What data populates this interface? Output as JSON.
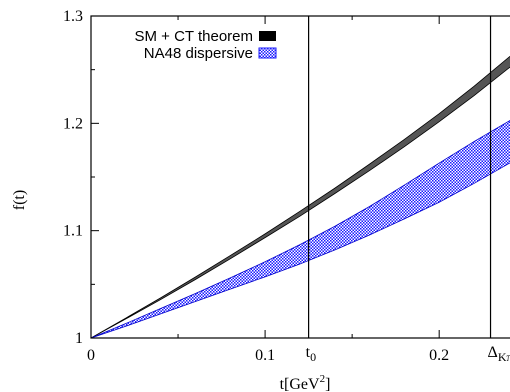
{
  "chart_data": {
    "type": "area",
    "xlabel_base": "t[GeV",
    "xlabel_sup": "2",
    "xlabel_close": "]",
    "ylabel": "f(t)",
    "xlim": [
      0,
      0.247
    ],
    "ylim": [
      1.0,
      1.3
    ],
    "x_ticks": [
      {
        "value": 0,
        "label": "0"
      },
      {
        "value": 0.1,
        "label": "0.1"
      },
      {
        "value": 0.2,
        "label": "0.2"
      }
    ],
    "y_ticks": [
      {
        "value": 1.0,
        "label": "1"
      },
      {
        "value": 1.1,
        "label": "1.1"
      },
      {
        "value": 1.2,
        "label": "1.2"
      },
      {
        "value": 1.3,
        "label": "1.3"
      }
    ],
    "vlines": [
      {
        "value": 0.125,
        "base": "t",
        "sub": "0"
      },
      {
        "value": 0.2295,
        "base": "Δ",
        "sub": "Kπ"
      }
    ],
    "legend_position": "top-left",
    "series": [
      {
        "name": "SM + CT theorem",
        "color": "#555555",
        "x": [
          0,
          0.02,
          0.04,
          0.06,
          0.08,
          0.1,
          0.12,
          0.14,
          0.16,
          0.18,
          0.2,
          0.22,
          0.24,
          0.247
        ],
        "lower": [
          1.0,
          1.0178,
          1.0358,
          1.0545,
          1.0738,
          1.0935,
          1.1135,
          1.1345,
          1.156,
          1.1782,
          1.2015,
          1.2258,
          1.2515,
          1.2595
        ],
        "upper": [
          1.0,
          1.0186,
          1.0374,
          1.0568,
          1.0768,
          1.097,
          1.118,
          1.1395,
          1.162,
          1.185,
          1.209,
          1.2345,
          1.2615,
          1.27
        ]
      },
      {
        "name": "NA48 dispersive",
        "color": "#1a1aff",
        "x": [
          0,
          0.02,
          0.04,
          0.06,
          0.08,
          0.1,
          0.12,
          0.14,
          0.16,
          0.18,
          0.2,
          0.22,
          0.24,
          0.247
        ],
        "lower": [
          1.0,
          1.011,
          1.0225,
          1.034,
          1.0455,
          1.057,
          1.069,
          1.082,
          1.096,
          1.111,
          1.1265,
          1.144,
          1.1625,
          1.1695
        ],
        "upper": [
          1.0,
          1.0135,
          1.0275,
          1.0415,
          1.056,
          1.071,
          1.087,
          1.104,
          1.1225,
          1.1425,
          1.163,
          1.183,
          1.202,
          1.2085
        ]
      }
    ]
  }
}
